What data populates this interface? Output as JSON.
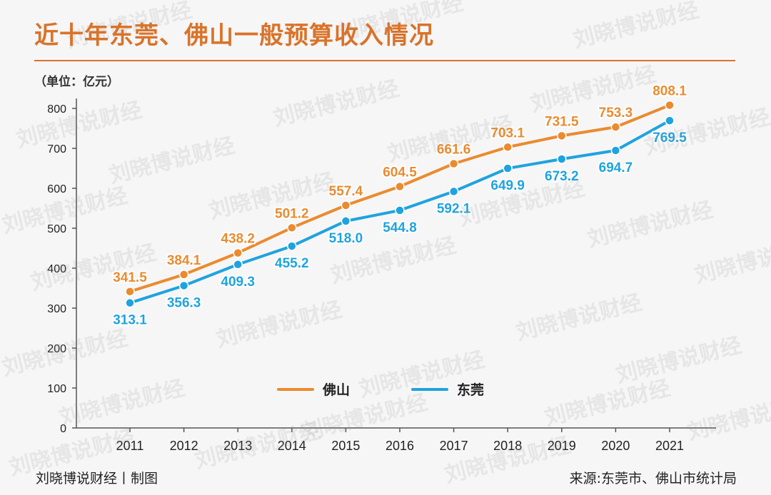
{
  "title": "近十年东莞、佛山一般预算收入情况",
  "unit_label": "（单位：亿元）",
  "footer": {
    "left": "刘晓博说财经丨制图",
    "right": "来源:东莞市、佛山市统计局"
  },
  "watermark": "刘晓博说财经",
  "colors": {
    "accent": "#d9732a",
    "foshan": "#ea8b2f",
    "dongguan": "#1fa3de"
  },
  "chart_data": {
    "type": "line",
    "title": "近十年东莞、佛山一般预算收入情况",
    "xlabel": "",
    "ylabel": "（单位：亿元）",
    "ylim": [
      0,
      800
    ],
    "yticks": [
      0,
      100,
      200,
      300,
      400,
      500,
      600,
      700,
      800
    ],
    "grid": false,
    "legend_position": "bottom-center",
    "x": [
      "2011",
      "2012",
      "2013",
      "2014",
      "2015",
      "2016",
      "2017",
      "2018",
      "2019",
      "2020",
      "2021"
    ],
    "series": [
      {
        "name": "佛山",
        "color": "#ea8b2f",
        "values": [
          341.5,
          384.1,
          438.2,
          501.2,
          557.4,
          604.5,
          661.6,
          703.1,
          731.5,
          753.3,
          808.1
        ],
        "labels": [
          "341.5",
          "384.1",
          "438.2",
          "501.2",
          "557.4",
          "604.5",
          "661.6",
          "703.1",
          "731.5",
          "753.3",
          "808.1"
        ]
      },
      {
        "name": "东莞",
        "color": "#1fa3de",
        "values": [
          313.1,
          356.3,
          409.3,
          455.2,
          518.0,
          544.8,
          592.1,
          649.9,
          673.2,
          694.7,
          769.5
        ],
        "labels": [
          "313.1",
          "356.3",
          "409.3",
          "455.2",
          "518.0",
          "544.8",
          "592.1",
          "649.9",
          "673.2",
          "694.7",
          "769.5"
        ]
      }
    ]
  }
}
